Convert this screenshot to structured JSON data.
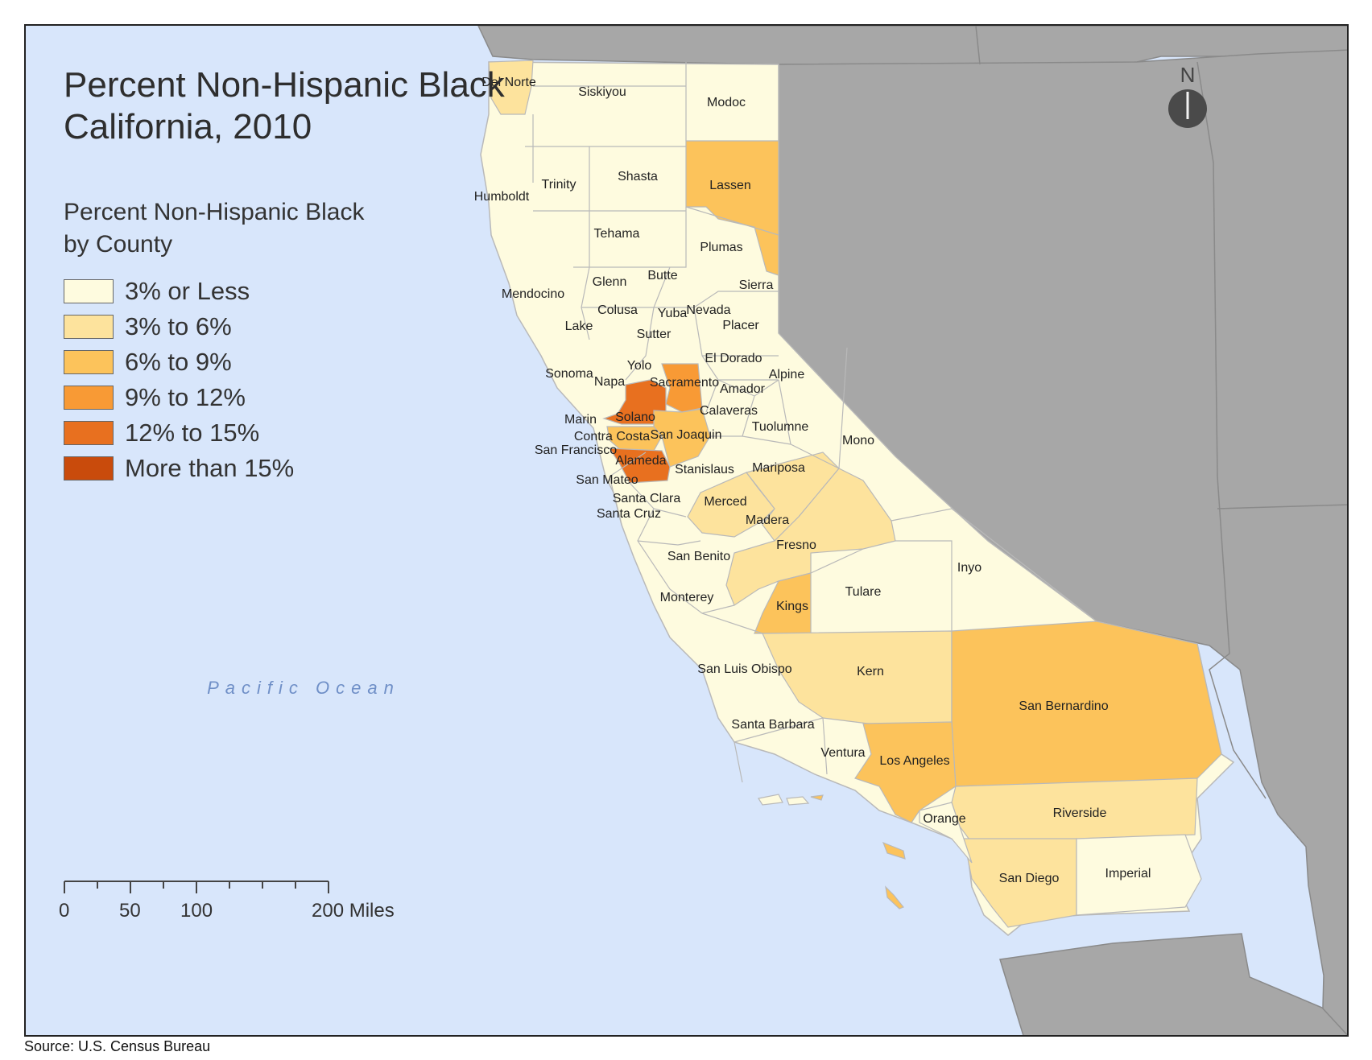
{
  "title_line1": "Percent Non-Hispanic Black",
  "title_line2": "California, 2010",
  "legend": {
    "title_line1": "Percent Non-Hispanic Black",
    "title_line2": "by County",
    "items": [
      {
        "label": "3% or Less",
        "color": "#fefbdf"
      },
      {
        "label": "3% to 6%",
        "color": "#fde39d"
      },
      {
        "label": "6% to 9%",
        "color": "#fcc35b"
      },
      {
        "label": "9% to 12%",
        "color": "#f89a35"
      },
      {
        "label": "12% to 15%",
        "color": "#e8701f"
      },
      {
        "label": "More than 15%",
        "color": "#c94b0c"
      }
    ]
  },
  "colors": {
    "ocean": "#d8e6fb",
    "neighbor_states": "#a7a7a7",
    "county_border": "#b9b9b9"
  },
  "ocean_label": "Pacific Ocean",
  "north_label": "N",
  "scale_bar": {
    "labels": [
      "0",
      "50",
      "100",
      "200 Miles"
    ]
  },
  "source": "Source: U.S. Census Bureau",
  "counties": [
    {
      "name": "Del Norte",
      "class": "3% to 6%"
    },
    {
      "name": "Siskiyou",
      "class": "3% or Less"
    },
    {
      "name": "Modoc",
      "class": "3% or Less"
    },
    {
      "name": "Humboldt",
      "class": "3% or Less"
    },
    {
      "name": "Trinity",
      "class": "3% or Less"
    },
    {
      "name": "Shasta",
      "class": "3% or Less"
    },
    {
      "name": "Lassen",
      "class": "6% to 9%"
    },
    {
      "name": "Tehama",
      "class": "3% or Less"
    },
    {
      "name": "Plumas",
      "class": "3% or Less"
    },
    {
      "name": "Mendocino",
      "class": "3% or Less"
    },
    {
      "name": "Glenn",
      "class": "3% or Less"
    },
    {
      "name": "Butte",
      "class": "3% or Less"
    },
    {
      "name": "Sierra",
      "class": "3% or Less"
    },
    {
      "name": "Colusa",
      "class": "3% or Less"
    },
    {
      "name": "Yuba",
      "class": "3% or Less"
    },
    {
      "name": "Nevada",
      "class": "3% or Less"
    },
    {
      "name": "Lake",
      "class": "3% or Less"
    },
    {
      "name": "Sutter",
      "class": "3% or Less"
    },
    {
      "name": "Placer",
      "class": "3% or Less"
    },
    {
      "name": "El Dorado",
      "class": "3% or Less"
    },
    {
      "name": "Yolo",
      "class": "3% or Less"
    },
    {
      "name": "Alpine",
      "class": "3% or Less"
    },
    {
      "name": "Sonoma",
      "class": "3% or Less"
    },
    {
      "name": "Napa",
      "class": "3% or Less"
    },
    {
      "name": "Sacramento",
      "class": "9% to 12%"
    },
    {
      "name": "Amador",
      "class": "3% or Less"
    },
    {
      "name": "Solano",
      "class": "12% to 15%"
    },
    {
      "name": "Calaveras",
      "class": "3% or Less"
    },
    {
      "name": "Marin",
      "class": "3% or Less"
    },
    {
      "name": "Tuolumne",
      "class": "3% or Less"
    },
    {
      "name": "Contra Costa",
      "class": "6% to 9%"
    },
    {
      "name": "San Joaquin",
      "class": "6% to 9%"
    },
    {
      "name": "Mono",
      "class": "3% or Less"
    },
    {
      "name": "San Francisco",
      "class": "3% or Less"
    },
    {
      "name": "Alameda",
      "class": "12% to 15%"
    },
    {
      "name": "Stanislaus",
      "class": "3% or Less"
    },
    {
      "name": "Mariposa",
      "class": "3% or Less"
    },
    {
      "name": "San Mateo",
      "class": "3% or Less"
    },
    {
      "name": "Santa Clara",
      "class": "3% or Less"
    },
    {
      "name": "Merced",
      "class": "3% to 6%"
    },
    {
      "name": "Santa Cruz",
      "class": "3% or Less"
    },
    {
      "name": "Madera",
      "class": "3% to 6%"
    },
    {
      "name": "Fresno",
      "class": "3% to 6%"
    },
    {
      "name": "San Benito",
      "class": "3% or Less"
    },
    {
      "name": "Inyo",
      "class": "3% or Less"
    },
    {
      "name": "Tulare",
      "class": "3% or Less"
    },
    {
      "name": "Monterey",
      "class": "3% or Less"
    },
    {
      "name": "Kings",
      "class": "6% to 9%"
    },
    {
      "name": "Kern",
      "class": "3% to 6%"
    },
    {
      "name": "San Luis Obispo",
      "class": "3% or Less"
    },
    {
      "name": "San Bernardino",
      "class": "6% to 9%"
    },
    {
      "name": "Santa Barbara",
      "class": "3% or Less"
    },
    {
      "name": "Ventura",
      "class": "3% or Less"
    },
    {
      "name": "Los Angeles",
      "class": "6% to 9%"
    },
    {
      "name": "Orange",
      "class": "3% or Less"
    },
    {
      "name": "Riverside",
      "class": "3% to 6%"
    },
    {
      "name": "San Diego",
      "class": "3% to 6%"
    },
    {
      "name": "Imperial",
      "class": "3% or Less"
    }
  ]
}
